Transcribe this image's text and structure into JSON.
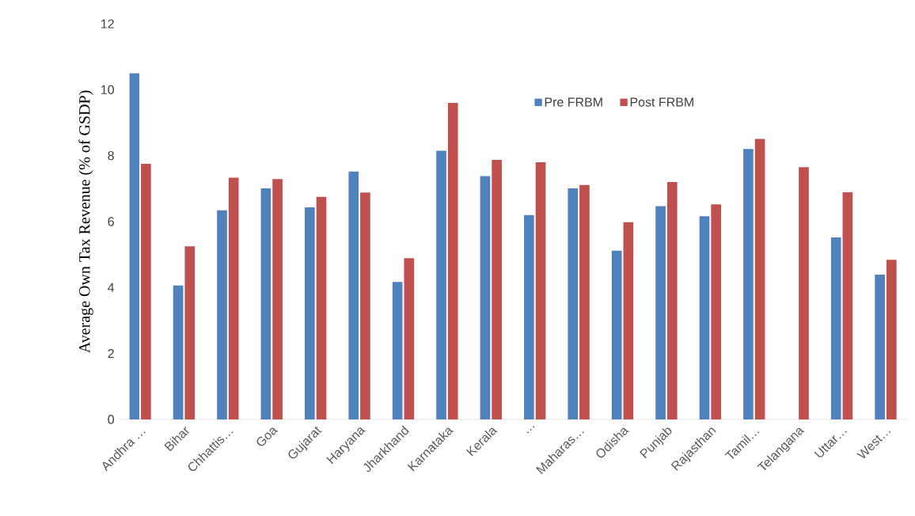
{
  "chart_data": {
    "type": "bar",
    "ylabel": "Average Own Tax Revenue (% of GSDP)",
    "categories": [
      "Andhra …",
      "Bihar",
      "Chhattis…",
      "Goa",
      "Gujarat",
      "Haryana",
      "Jharkhand",
      "Karnataka",
      "Kerala",
      "…",
      "Maharas…",
      "Odisha",
      "Punjab",
      "Rajasthan",
      "Tamil…",
      "Telangana",
      "Uttar…",
      "West…"
    ],
    "series": [
      {
        "name": "Pre FRBM",
        "color": "#4f81bd",
        "values": [
          10.5,
          4.06,
          6.34,
          7.01,
          6.43,
          7.52,
          4.17,
          8.15,
          7.38,
          6.2,
          7.01,
          5.12,
          6.47,
          6.16,
          8.2,
          null,
          5.52,
          4.39
        ]
      },
      {
        "name": "Post FRBM",
        "color": "#c0504d",
        "values": [
          7.75,
          5.25,
          7.33,
          7.29,
          6.75,
          6.88,
          4.89,
          9.6,
          7.87,
          7.8,
          7.11,
          5.98,
          7.2,
          6.52,
          8.51,
          7.65,
          6.89,
          4.84
        ]
      }
    ],
    "ylim": [
      0,
      12
    ],
    "yticks": [
      0,
      2,
      4,
      6,
      8,
      10,
      12
    ],
    "legend": "top"
  }
}
